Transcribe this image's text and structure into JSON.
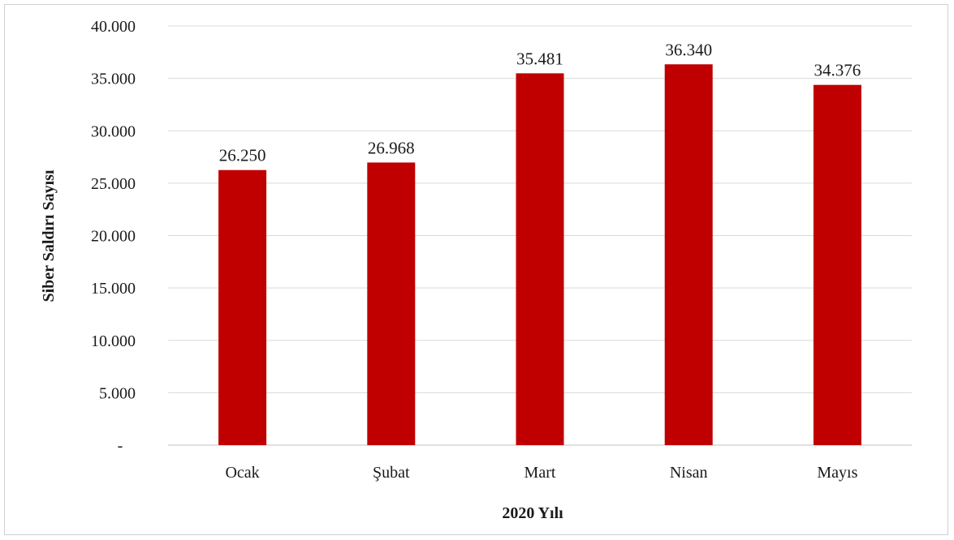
{
  "chart_data": {
    "type": "bar",
    "categories": [
      "Ocak",
      "Şubat",
      "Mart",
      "Nisan",
      "Mayıs"
    ],
    "values": [
      26250,
      26968,
      35481,
      36340,
      34376
    ],
    "value_labels": [
      "26.250",
      "26.968",
      "35.481",
      "36.340",
      "34.376"
    ],
    "title": "",
    "xlabel": "2020 Yılı",
    "ylabel": "Siber Saldırı Sayısı",
    "ylim": [
      0,
      40000
    ],
    "yticks": [
      0,
      5000,
      10000,
      15000,
      20000,
      25000,
      30000,
      35000,
      40000
    ],
    "ytick_labels": [
      "-",
      "5.000",
      "10.000",
      "15.000",
      "20.000",
      "25.000",
      "30.000",
      "35.000",
      "40.000"
    ],
    "grid": true,
    "legend": "none",
    "bar_color": "#c00000"
  }
}
